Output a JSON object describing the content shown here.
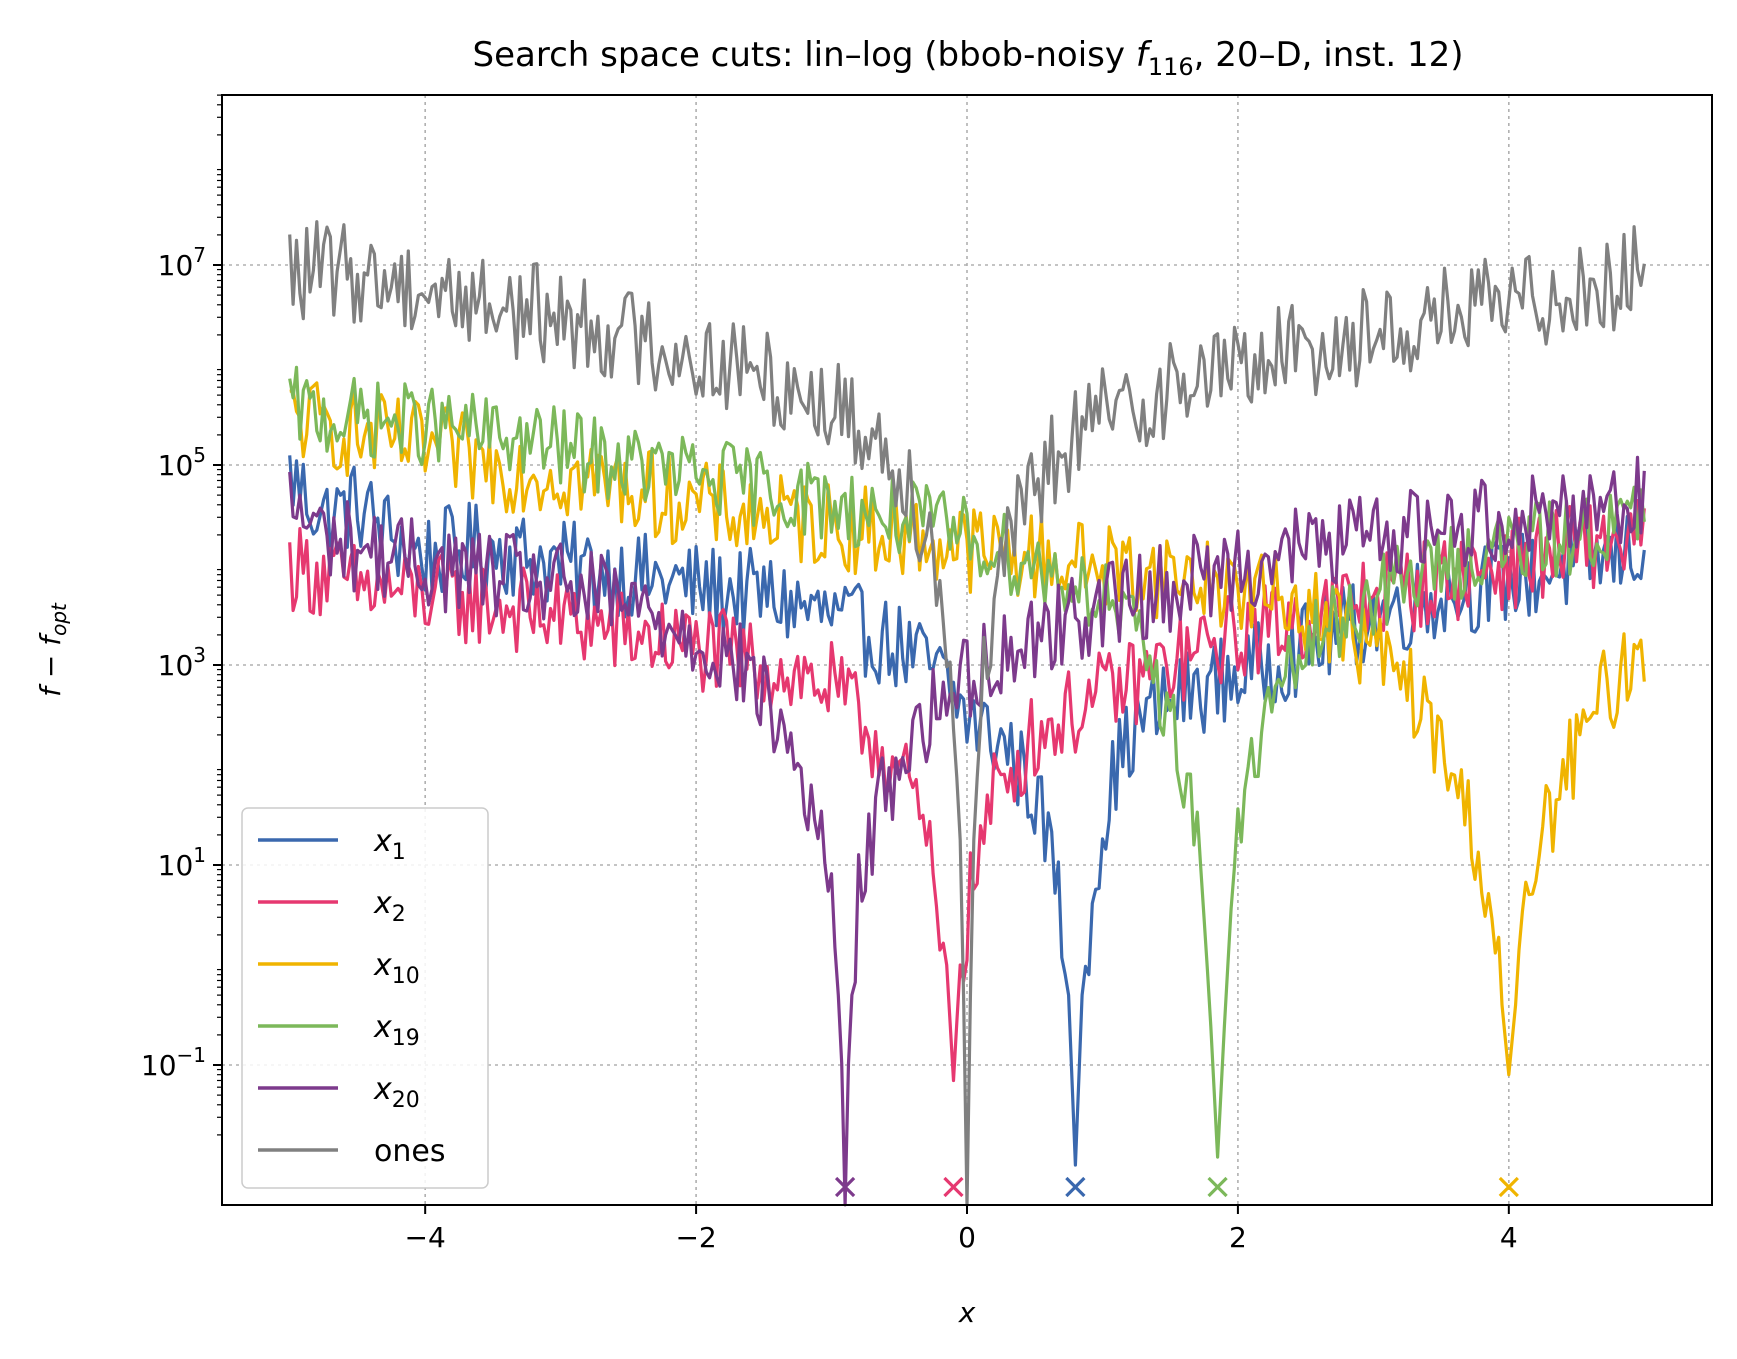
{
  "chart_data": {
    "type": "line",
    "title": {
      "prefix": "Search space cuts: lin–log (bbob-noisy ",
      "f_symbol": "f",
      "f_sub": "116",
      "suffix": ", 20–D, inst. 12)"
    },
    "xlabel": "x",
    "ylabel": {
      "main": "f − f",
      "sub": "opt"
    },
    "xlim": [
      -5.5,
      5.5
    ],
    "ylim_log10": [
      -2.4,
      8.7
    ],
    "yscale": "log",
    "grid": true,
    "legend_position": "lower-left",
    "x_ticks": [
      {
        "value": -4,
        "label": "−4"
      },
      {
        "value": -2,
        "label": "−2"
      },
      {
        "value": 0,
        "label": "0"
      },
      {
        "value": 2,
        "label": "2"
      },
      {
        "value": 4,
        "label": "4"
      }
    ],
    "y_ticks": [
      {
        "exp": 7,
        "base": "10",
        "sup": "7"
      },
      {
        "exp": 5,
        "base": "10",
        "sup": "5"
      },
      {
        "exp": 3,
        "base": "10",
        "sup": "3"
      },
      {
        "exp": 1,
        "base": "10",
        "sup": "1"
      },
      {
        "exp": -1,
        "base": "10",
        "sup": "−1"
      }
    ],
    "series": [
      {
        "name": "x",
        "sub": "1",
        "color": "#3a68ae",
        "optimum_x": 0.8,
        "points": [
          [
            -5.0,
            80000.0
          ],
          [
            -4.75,
            30000.0
          ],
          [
            -4.5,
            40000.0
          ],
          [
            -4.25,
            20000.0
          ],
          [
            -4.0,
            12000.0
          ],
          [
            -3.75,
            15000.0
          ],
          [
            -3.5,
            15000.0
          ],
          [
            -3.0,
            10000.0
          ],
          [
            -2.5,
            8000.0
          ],
          [
            -2.0,
            6000.0
          ],
          [
            -1.5,
            5000.0
          ],
          [
            -1.0,
            3000.0
          ],
          [
            -0.5,
            1500.0
          ],
          [
            -0.2,
            800.0
          ],
          [
            0.0,
            300.0
          ],
          [
            0.3,
            150.0
          ],
          [
            0.5,
            50.0
          ],
          [
            0.65,
            10.0
          ],
          [
            0.75,
            0.5
          ],
          [
            0.8,
            0.01
          ],
          [
            0.85,
            0.5
          ],
          [
            0.95,
            10.0
          ],
          [
            1.1,
            100.0
          ],
          [
            1.3,
            300.0
          ],
          [
            1.6,
            500.0
          ],
          [
            2.0,
            800.0
          ],
          [
            2.5,
            1500.0
          ],
          [
            3.0,
            3000.0
          ],
          [
            3.5,
            5000.0
          ],
          [
            4.0,
            7000.0
          ],
          [
            4.5,
            10000.0
          ],
          [
            5.0,
            15000.0
          ]
        ]
      },
      {
        "name": "x",
        "sub": "2",
        "color": "#e63870",
        "optimum_x": -0.1,
        "points": [
          [
            -5.0,
            10000.0
          ],
          [
            -4.75,
            8000.0
          ],
          [
            -4.5,
            6000.0
          ],
          [
            -4.0,
            5000.0
          ],
          [
            -3.5,
            4000.0
          ],
          [
            -3.0,
            3000.0
          ],
          [
            -2.5,
            2000.0
          ],
          [
            -2.0,
            1500.0
          ],
          [
            -1.5,
            1000.0
          ],
          [
            -1.0,
            600.0
          ],
          [
            -0.7,
            200.0
          ],
          [
            -0.4,
            50.0
          ],
          [
            -0.25,
            8.0
          ],
          [
            -0.15,
            1.0
          ],
          [
            -0.1,
            0.07
          ],
          [
            -0.05,
            1.0
          ],
          [
            0.05,
            8.0
          ],
          [
            0.2,
            50.0
          ],
          [
            0.5,
            200.0
          ],
          [
            1.0,
            500.0
          ],
          [
            1.5,
            1000.0
          ],
          [
            2.0,
            2000.0
          ],
          [
            2.5,
            3000.0
          ],
          [
            3.0,
            5000.0
          ],
          [
            3.5,
            7000.0
          ],
          [
            4.0,
            10000.0
          ],
          [
            4.5,
            15000.0
          ],
          [
            5.0,
            20000.0
          ]
        ]
      },
      {
        "name": "x",
        "sub": "10",
        "color": "#f0b400",
        "optimum_x": 4.0,
        "points": [
          [
            -5.0,
            300000.0
          ],
          [
            -4.75,
            250000.0
          ],
          [
            -4.5,
            200000.0
          ],
          [
            -4.0,
            150000.0
          ],
          [
            -3.5,
            100000.0
          ],
          [
            -3.0,
            80000.0
          ],
          [
            -2.5,
            60000.0
          ],
          [
            -2.0,
            40000.0
          ],
          [
            -1.5,
            30000.0
          ],
          [
            -1.0,
            25000.0
          ],
          [
            -0.5,
            20000.0
          ],
          [
            0.0,
            15000.0
          ],
          [
            0.5,
            12000.0
          ],
          [
            1.0,
            10000.0
          ],
          [
            1.5,
            8000.0
          ],
          [
            2.0,
            6000.0
          ],
          [
            2.5,
            4000.0
          ],
          [
            3.0,
            1500.0
          ],
          [
            3.3,
            500.0
          ],
          [
            3.55,
            100.0
          ],
          [
            3.75,
            20.0
          ],
          [
            3.9,
            2.0
          ],
          [
            4.0,
            0.08
          ],
          [
            4.1,
            2.0
          ],
          [
            4.25,
            20.0
          ],
          [
            4.45,
            100.0
          ],
          [
            4.7,
            500.0
          ],
          [
            5.0,
            1500.0
          ]
        ]
      },
      {
        "name": "x",
        "sub": "19",
        "color": "#7cb85a",
        "optimum_x": 1.85,
        "points": [
          [
            -5.0,
            400000.0
          ],
          [
            -4.75,
            300000.0
          ],
          [
            -4.5,
            300000.0
          ],
          [
            -4.0,
            250000.0
          ],
          [
            -3.5,
            200000.0
          ],
          [
            -3.0,
            150000.0
          ],
          [
            -2.5,
            100000.0
          ],
          [
            -2.0,
            80000.0
          ],
          [
            -1.5,
            60000.0
          ],
          [
            -1.0,
            40000.0
          ],
          [
            -0.5,
            30000.0
          ],
          [
            0.0,
            20000.0
          ],
          [
            0.5,
            10000.0
          ],
          [
            1.0,
            5000.0
          ],
          [
            1.3,
            1500.0
          ],
          [
            1.5,
            300.0
          ],
          [
            1.65,
            50.0
          ],
          [
            1.75,
            5.0
          ],
          [
            1.85,
            0.012
          ],
          [
            1.95,
            5.0
          ],
          [
            2.05,
            50.0
          ],
          [
            2.2,
            300.0
          ],
          [
            2.5,
            1500.0
          ],
          [
            3.0,
            5000.0
          ],
          [
            3.5,
            10000.0
          ],
          [
            4.0,
            15000.0
          ],
          [
            4.5,
            20000.0
          ],
          [
            5.0,
            30000.0
          ]
        ]
      },
      {
        "name": "x",
        "sub": "20",
        "color": "#7d3a8c",
        "optimum_x": -0.9,
        "points": [
          [
            -5.0,
            40000.0
          ],
          [
            -4.75,
            20000.0
          ],
          [
            -4.5,
            15000.0
          ],
          [
            -4.0,
            10000.0
          ],
          [
            -3.5,
            8000.0
          ],
          [
            -3.0,
            6000.0
          ],
          [
            -2.5,
            4000.0
          ],
          [
            -2.0,
            2000.0
          ],
          [
            -1.6,
            800.0
          ],
          [
            -1.35,
            200.0
          ],
          [
            -1.15,
            40.0
          ],
          [
            -1.0,
            5.0
          ],
          [
            -0.93,
            0.2
          ],
          [
            -0.9,
            0.004
          ],
          [
            -0.87,
            0.2
          ],
          [
            -0.8,
            5.0
          ],
          [
            -0.65,
            40.0
          ],
          [
            -0.4,
            200.0
          ],
          [
            0.0,
            800.0
          ],
          [
            0.5,
            2000.0
          ],
          [
            1.0,
            4000.0
          ],
          [
            1.5,
            6000.0
          ],
          [
            2.0,
            10000.0
          ],
          [
            2.5,
            15000.0
          ],
          [
            3.0,
            20000.0
          ],
          [
            3.5,
            25000.0
          ],
          [
            4.0,
            30000.0
          ],
          [
            4.5,
            40000.0
          ],
          [
            5.0,
            50000.0
          ]
        ]
      },
      {
        "name": "ones",
        "sub": "",
        "color": "#808080",
        "optimum_x": null,
        "points": [
          [
            -5.0,
            8000000.0
          ],
          [
            -4.75,
            9000000.0
          ],
          [
            -4.5,
            8000000.0
          ],
          [
            -4.0,
            6000000.0
          ],
          [
            -3.5,
            4000000.0
          ],
          [
            -3.0,
            3000000.0
          ],
          [
            -2.5,
            2000000.0
          ],
          [
            -2.0,
            1200000.0
          ],
          [
            -1.5,
            800000.0
          ],
          [
            -1.0,
            400000.0
          ],
          [
            -0.7,
            200000.0
          ],
          [
            -0.45,
            80000.0
          ],
          [
            -0.25,
            15000.0
          ],
          [
            -0.12,
            1000.0
          ],
          [
            -0.04,
            10.0
          ],
          [
            0.0,
            0.003
          ],
          [
            0.04,
            10.0
          ],
          [
            0.12,
            1000.0
          ],
          [
            0.3,
            15000.0
          ],
          [
            0.55,
            80000.0
          ],
          [
            0.8,
            200000.0
          ],
          [
            1.0,
            300000.0
          ],
          [
            1.5,
            600000.0
          ],
          [
            2.0,
            1000000.0
          ],
          [
            2.5,
            1500000.0
          ],
          [
            3.0,
            2000000.0
          ],
          [
            3.5,
            3000000.0
          ],
          [
            4.0,
            4000000.0
          ],
          [
            4.5,
            6000000.0
          ],
          [
            5.0,
            8000000.0
          ]
        ]
      }
    ]
  }
}
